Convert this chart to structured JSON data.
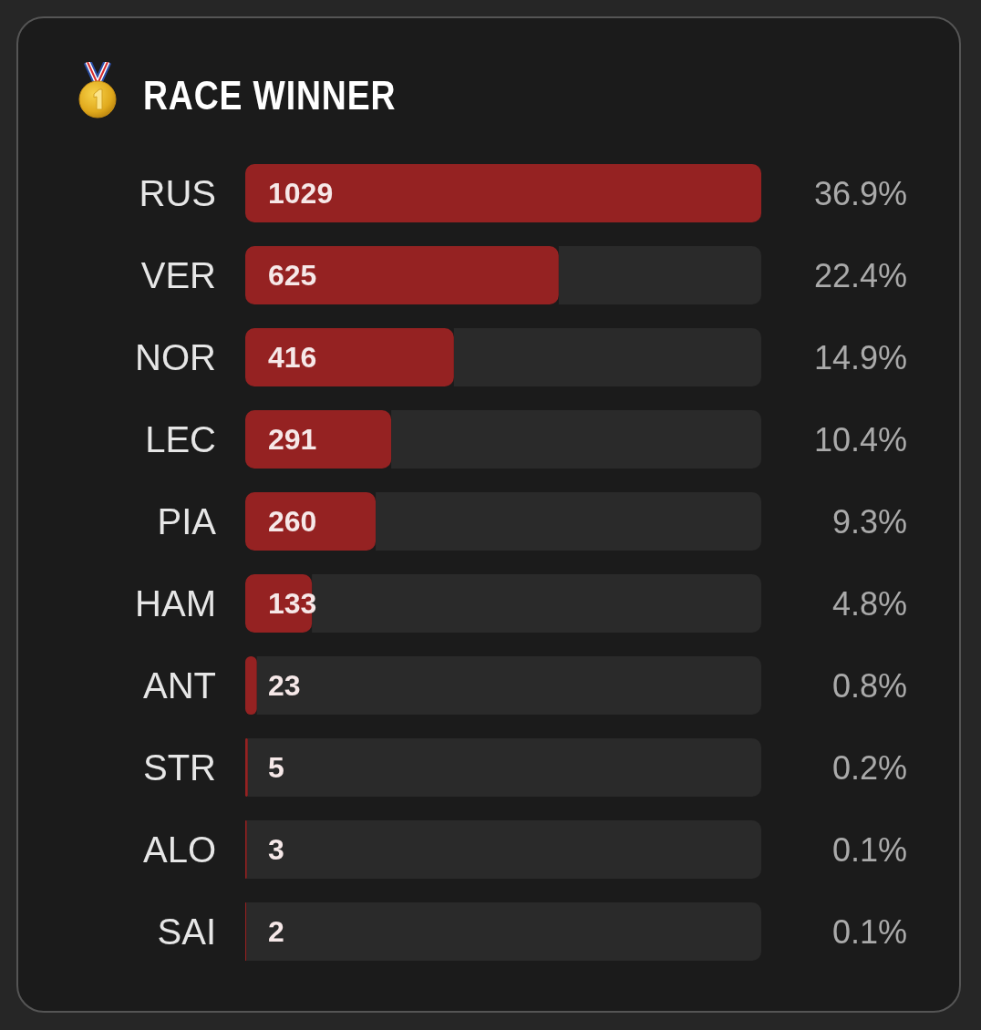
{
  "chart_data": {
    "type": "bar",
    "orientation": "horizontal",
    "stacked": true,
    "title": "RACE WINNER",
    "categories": [
      "RUS",
      "VER",
      "NOR",
      "LEC",
      "PIA",
      "HAM",
      "ANT",
      "STR",
      "ALO",
      "SAI"
    ],
    "series": [
      {
        "color": "#952222",
        "values": [
          1029,
          625,
          416,
          291,
          260,
          133,
          23,
          5,
          3,
          2
        ],
        "value_labels": [
          "1029",
          "625",
          "416",
          "291",
          "260",
          "133",
          "23",
          "5",
          "3",
          "2"
        ]
      },
      {
        "color": "#2a2a2a",
        "values": [
          0,
          404,
          613,
          738,
          769,
          896,
          1006,
          1024,
          1026,
          1027
        ]
      }
    ],
    "xlim": [
      0,
      1029
    ],
    "tick_labels": "y",
    "annotations": [
      "36.9%",
      "22.4%",
      "14.9%",
      "10.4%",
      "9.3%",
      "4.8%",
      "0.8%",
      "0.2%",
      "0.1%",
      "0.1%"
    ]
  }
}
